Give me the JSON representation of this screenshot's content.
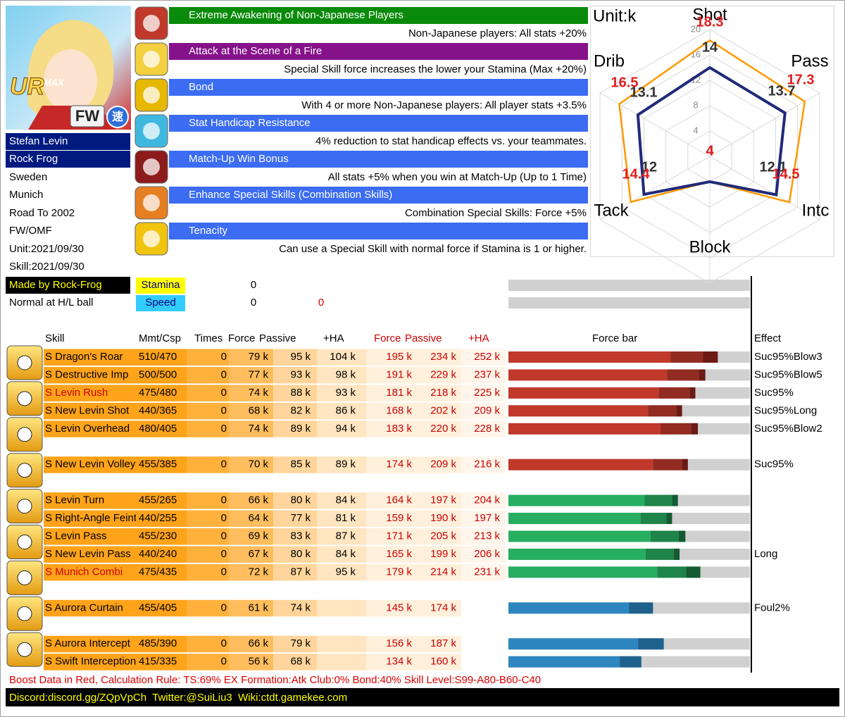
{
  "portrait": {
    "rank": "UR",
    "max": "MAX",
    "position": "FW",
    "speed": "速"
  },
  "profile": {
    "name": "Stefan Levin",
    "title": "Rock Frog",
    "nation": "Sweden",
    "team": "Munich",
    "series": "Road To 2002",
    "position": "FW/OMF",
    "unit_date": "Unit:2021/09/30",
    "skill_date": "Skill:2021/09/30",
    "credit": "Made by Rock-Frog",
    "ball": "Normal at H/L ball"
  },
  "passives": [
    {
      "title": "Extreme Awakening of Non-Japanese Players",
      "description": "Non-Japanese players: All stats +20%",
      "color": "#0a8a0a"
    },
    {
      "title": "Attack at the Scene of a Fire",
      "description": "Special Skill force increases the lower your Stamina (Max +20%)",
      "color": "#86128a"
    },
    {
      "title": "Bond",
      "description": "With 4 or more Non-Japanese players: All player stats +3.5%",
      "color": "#3b6cf2"
    },
    {
      "title": "Stat Handicap Resistance",
      "description": "4% reduction to stat handicap effects vs. your teammates.",
      "color": "#3b6cf2"
    },
    {
      "title": "Match-Up Win Bonus",
      "description": "All stats +5% when you win at Match-Up (Up to 1 Time)",
      "color": "#3b6cf2"
    },
    {
      "title": "Enhance Special Skills (Combination Skills)",
      "description": "Combination Special Skills: Force +5%",
      "color": "#3b6cf2"
    },
    {
      "title": "Tenacity",
      "description": "Can use a Special Skill with normal force if Stamina is 1 or higher.",
      "color": "#3b6cf2"
    }
  ],
  "stats": [
    {
      "name": "Stamina",
      "value": 0,
      "color": "#ffff00"
    },
    {
      "name": "Speed",
      "value": 0,
      "boost": 0,
      "color": "#33ccff"
    }
  ],
  "radar": {
    "unit": "Unit:k",
    "axes": [
      "Shot",
      "Pass",
      "Intc",
      "Block",
      "Tack",
      "Drib"
    ],
    "rlim": [
      0,
      20
    ],
    "ticks": [
      4,
      8,
      12,
      16,
      20
    ],
    "base": {
      "color": "#1f2a7a",
      "values": [
        14,
        13.7,
        12.1,
        4,
        12,
        13.1
      ]
    },
    "boost": {
      "color": "#ff9900",
      "label_color": "#e02020",
      "values": [
        18.3,
        17.3,
        14.5,
        4,
        14.4,
        16.5
      ]
    }
  },
  "table": {
    "headers": [
      {
        "label": "Skill",
        "color": "#000000"
      },
      {
        "label": "Mmt/Csp",
        "color": "#000000"
      },
      {
        "label": "Times",
        "color": "#000000"
      },
      {
        "label": "Force",
        "color": "#000000"
      },
      {
        "label": "Passive",
        "color": "#000000"
      },
      {
        "label": "+HA",
        "color": "#000000"
      },
      {
        "label": "Force",
        "color": "#cc0000"
      },
      {
        "label": "Passive",
        "color": "#cc0000"
      },
      {
        "label": "+HA",
        "color": "#cc0000"
      },
      {
        "label": "Force bar",
        "color": "#000000"
      },
      {
        "label": "Effect",
        "color": "#000000"
      }
    ],
    "groups": [
      {
        "bar_colors": [
          "#c0392b",
          "#922b21",
          "#6b1a14"
        ],
        "rows": [
          {
            "name": "S Dragon's Roar",
            "mmt": "510/470",
            "times": 0,
            "force": {
              "value": 79,
              "label": "79 k"
            },
            "passive": {
              "value": 95,
              "label": "95 k"
            },
            "ha": {
              "value": 104,
              "label": "104 k"
            },
            "boost_force": {
              "value": 195,
              "label": "195 k"
            },
            "boost_passive": {
              "value": 234,
              "label": "234 k"
            },
            "boost_ha": {
              "value": 252,
              "label": "252 k"
            },
            "effect": "Suc95%Blow3"
          },
          {
            "name": "S Destructive Imp",
            "mmt": "500/500",
            "times": 0,
            "force": {
              "value": 77,
              "label": "77 k"
            },
            "passive": {
              "value": 93,
              "label": "93 k"
            },
            "ha": {
              "value": 98,
              "label": "98 k"
            },
            "boost_force": {
              "value": 191,
              "label": "191 k"
            },
            "boost_passive": {
              "value": 229,
              "label": "229 k"
            },
            "boost_ha": {
              "value": 237,
              "label": "237 k"
            },
            "effect": "Suc95%Blow5"
          },
          {
            "name": "S Levin Rush",
            "name_color": "#cc0000",
            "mmt": "475/480",
            "times": 0,
            "force": {
              "value": 74,
              "label": "74 k"
            },
            "passive": {
              "value": 88,
              "label": "88 k"
            },
            "ha": {
              "value": 93,
              "label": "93 k"
            },
            "boost_force": {
              "value": 181,
              "label": "181 k"
            },
            "boost_passive": {
              "value": 218,
              "label": "218 k"
            },
            "boost_ha": {
              "value": 225,
              "label": "225 k"
            },
            "effect": "Suc95%"
          },
          {
            "name": "S New Levin Shot",
            "mmt": "440/365",
            "times": 0,
            "force": {
              "value": 68,
              "label": "68 k"
            },
            "passive": {
              "value": 82,
              "label": "82 k"
            },
            "ha": {
              "value": 86,
              "label": "86 k"
            },
            "boost_force": {
              "value": 168,
              "label": "168 k"
            },
            "boost_passive": {
              "value": 202,
              "label": "202 k"
            },
            "boost_ha": {
              "value": 209,
              "label": "209 k"
            },
            "effect": "Suc95%Long"
          },
          {
            "name": "S Levin Overhead",
            "mmt": "480/405",
            "times": 0,
            "force": {
              "value": 74,
              "label": "74 k"
            },
            "passive": {
              "value": 89,
              "label": "89 k"
            },
            "ha": {
              "value": 94,
              "label": "94 k"
            },
            "boost_force": {
              "value": 183,
              "label": "183 k"
            },
            "boost_passive": {
              "value": 220,
              "label": "220 k"
            },
            "boost_ha": {
              "value": 228,
              "label": "228 k"
            },
            "effect": "Suc95%Blow2"
          }
        ]
      },
      {
        "bar_colors": [
          "#c0392b",
          "#922b21",
          "#6b1a14"
        ],
        "rows": [
          {
            "name": "S New Levin Volley",
            "mmt": "455/385",
            "times": 0,
            "force": {
              "value": 70,
              "label": "70 k"
            },
            "passive": {
              "value": 85,
              "label": "85 k"
            },
            "ha": {
              "value": 89,
              "label": "89 k"
            },
            "boost_force": {
              "value": 174,
              "label": "174 k"
            },
            "boost_passive": {
              "value": 209,
              "label": "209 k"
            },
            "boost_ha": {
              "value": 216,
              "label": "216 k"
            },
            "effect": "Suc95%"
          }
        ]
      },
      {
        "bar_colors": [
          "#27ae60",
          "#1e8449",
          "#145a32"
        ],
        "rows": [
          {
            "name": "S Levin Turn",
            "mmt": "455/265",
            "times": 0,
            "force": {
              "value": 66,
              "label": "66 k"
            },
            "passive": {
              "value": 80,
              "label": "80 k"
            },
            "ha": {
              "value": 84,
              "label": "84 k"
            },
            "boost_force": {
              "value": 164,
              "label": "164 k"
            },
            "boost_passive": {
              "value": 197,
              "label": "197 k"
            },
            "boost_ha": {
              "value": 204,
              "label": "204 k"
            }
          },
          {
            "name": "S Right-Angle Feint",
            "mmt": "440/255",
            "times": 0,
            "force": {
              "value": 64,
              "label": "64 k"
            },
            "passive": {
              "value": 77,
              "label": "77 k"
            },
            "ha": {
              "value": 81,
              "label": "81 k"
            },
            "boost_force": {
              "value": 159,
              "label": "159 k"
            },
            "boost_passive": {
              "value": 190,
              "label": "190 k"
            },
            "boost_ha": {
              "value": 197,
              "label": "197 k"
            }
          },
          {
            "name": "S Levin Pass",
            "mmt": "455/230",
            "times": 0,
            "force": {
              "value": 69,
              "label": "69 k"
            },
            "passive": {
              "value": 83,
              "label": "83 k"
            },
            "ha": {
              "value": 87,
              "label": "87 k"
            },
            "boost_force": {
              "value": 171,
              "label": "171 k"
            },
            "boost_passive": {
              "value": 205,
              "label": "205 k"
            },
            "boost_ha": {
              "value": 213,
              "label": "213 k"
            }
          },
          {
            "name": "S New Levin Pass",
            "mmt": "440/240",
            "times": 0,
            "force": {
              "value": 67,
              "label": "67 k"
            },
            "passive": {
              "value": 80,
              "label": "80 k"
            },
            "ha": {
              "value": 84,
              "label": "84 k"
            },
            "boost_force": {
              "value": 165,
              "label": "165 k"
            },
            "boost_passive": {
              "value": 199,
              "label": "199 k"
            },
            "boost_ha": {
              "value": 206,
              "label": "206 k"
            },
            "effect": "Long"
          },
          {
            "name": "S Munich Combi",
            "name_color": "#cc0000",
            "mmt": "475/435",
            "times": 0,
            "force": {
              "value": 72,
              "label": "72 k"
            },
            "passive": {
              "value": 87,
              "label": "87 k"
            },
            "ha": {
              "value": 95,
              "label": "95 k"
            },
            "boost_force": {
              "value": 179,
              "label": "179 k"
            },
            "boost_passive": {
              "value": 214,
              "label": "214 k"
            },
            "boost_ha": {
              "value": 231,
              "label": "231 k"
            }
          }
        ]
      },
      {
        "bar_colors": [
          "#2e86c1",
          "#1f618d",
          "#154360"
        ],
        "rows": [
          {
            "name": "S Aurora Curtain",
            "mmt": "455/405",
            "times": 0,
            "force": {
              "value": 61,
              "label": "61 k"
            },
            "passive": {
              "value": 74,
              "label": "74 k"
            },
            "boost_force": {
              "value": 145,
              "label": "145 k"
            },
            "boost_passive": {
              "value": 174,
              "label": "174 k"
            },
            "effect": "Foul2%"
          }
        ]
      },
      {
        "bar_colors": [
          "#2e86c1",
          "#1f618d",
          "#154360"
        ],
        "rows": [
          {
            "name": "S Aurora Intercept",
            "mmt": "485/390",
            "times": 0,
            "force": {
              "value": 66,
              "label": "66 k"
            },
            "passive": {
              "value": 79,
              "label": "79 k"
            },
            "boost_force": {
              "value": 156,
              "label": "156 k"
            },
            "boost_passive": {
              "value": 187,
              "label": "187 k"
            }
          },
          {
            "name": "S Swift Interception",
            "mmt": "415/335",
            "times": 0,
            "force": {
              "value": 56,
              "label": "56 k"
            },
            "passive": {
              "value": 68,
              "label": "68 k"
            },
            "boost_force": {
              "value": 134,
              "label": "134 k"
            },
            "boost_passive": {
              "value": 160,
              "label": "160 k"
            }
          }
        ]
      }
    ]
  },
  "footer": {
    "note": "Boost Data in Red, Calculation Rule: TS:69% EX Formation:Atk Club:0% Bond:40% Skill Level:S99-A80-B60-C40",
    "links": "Discord:discord.gg/ZQpVpCh  Twitter:@SuiLiu3  Wiki:ctdt.gamekee.com"
  }
}
